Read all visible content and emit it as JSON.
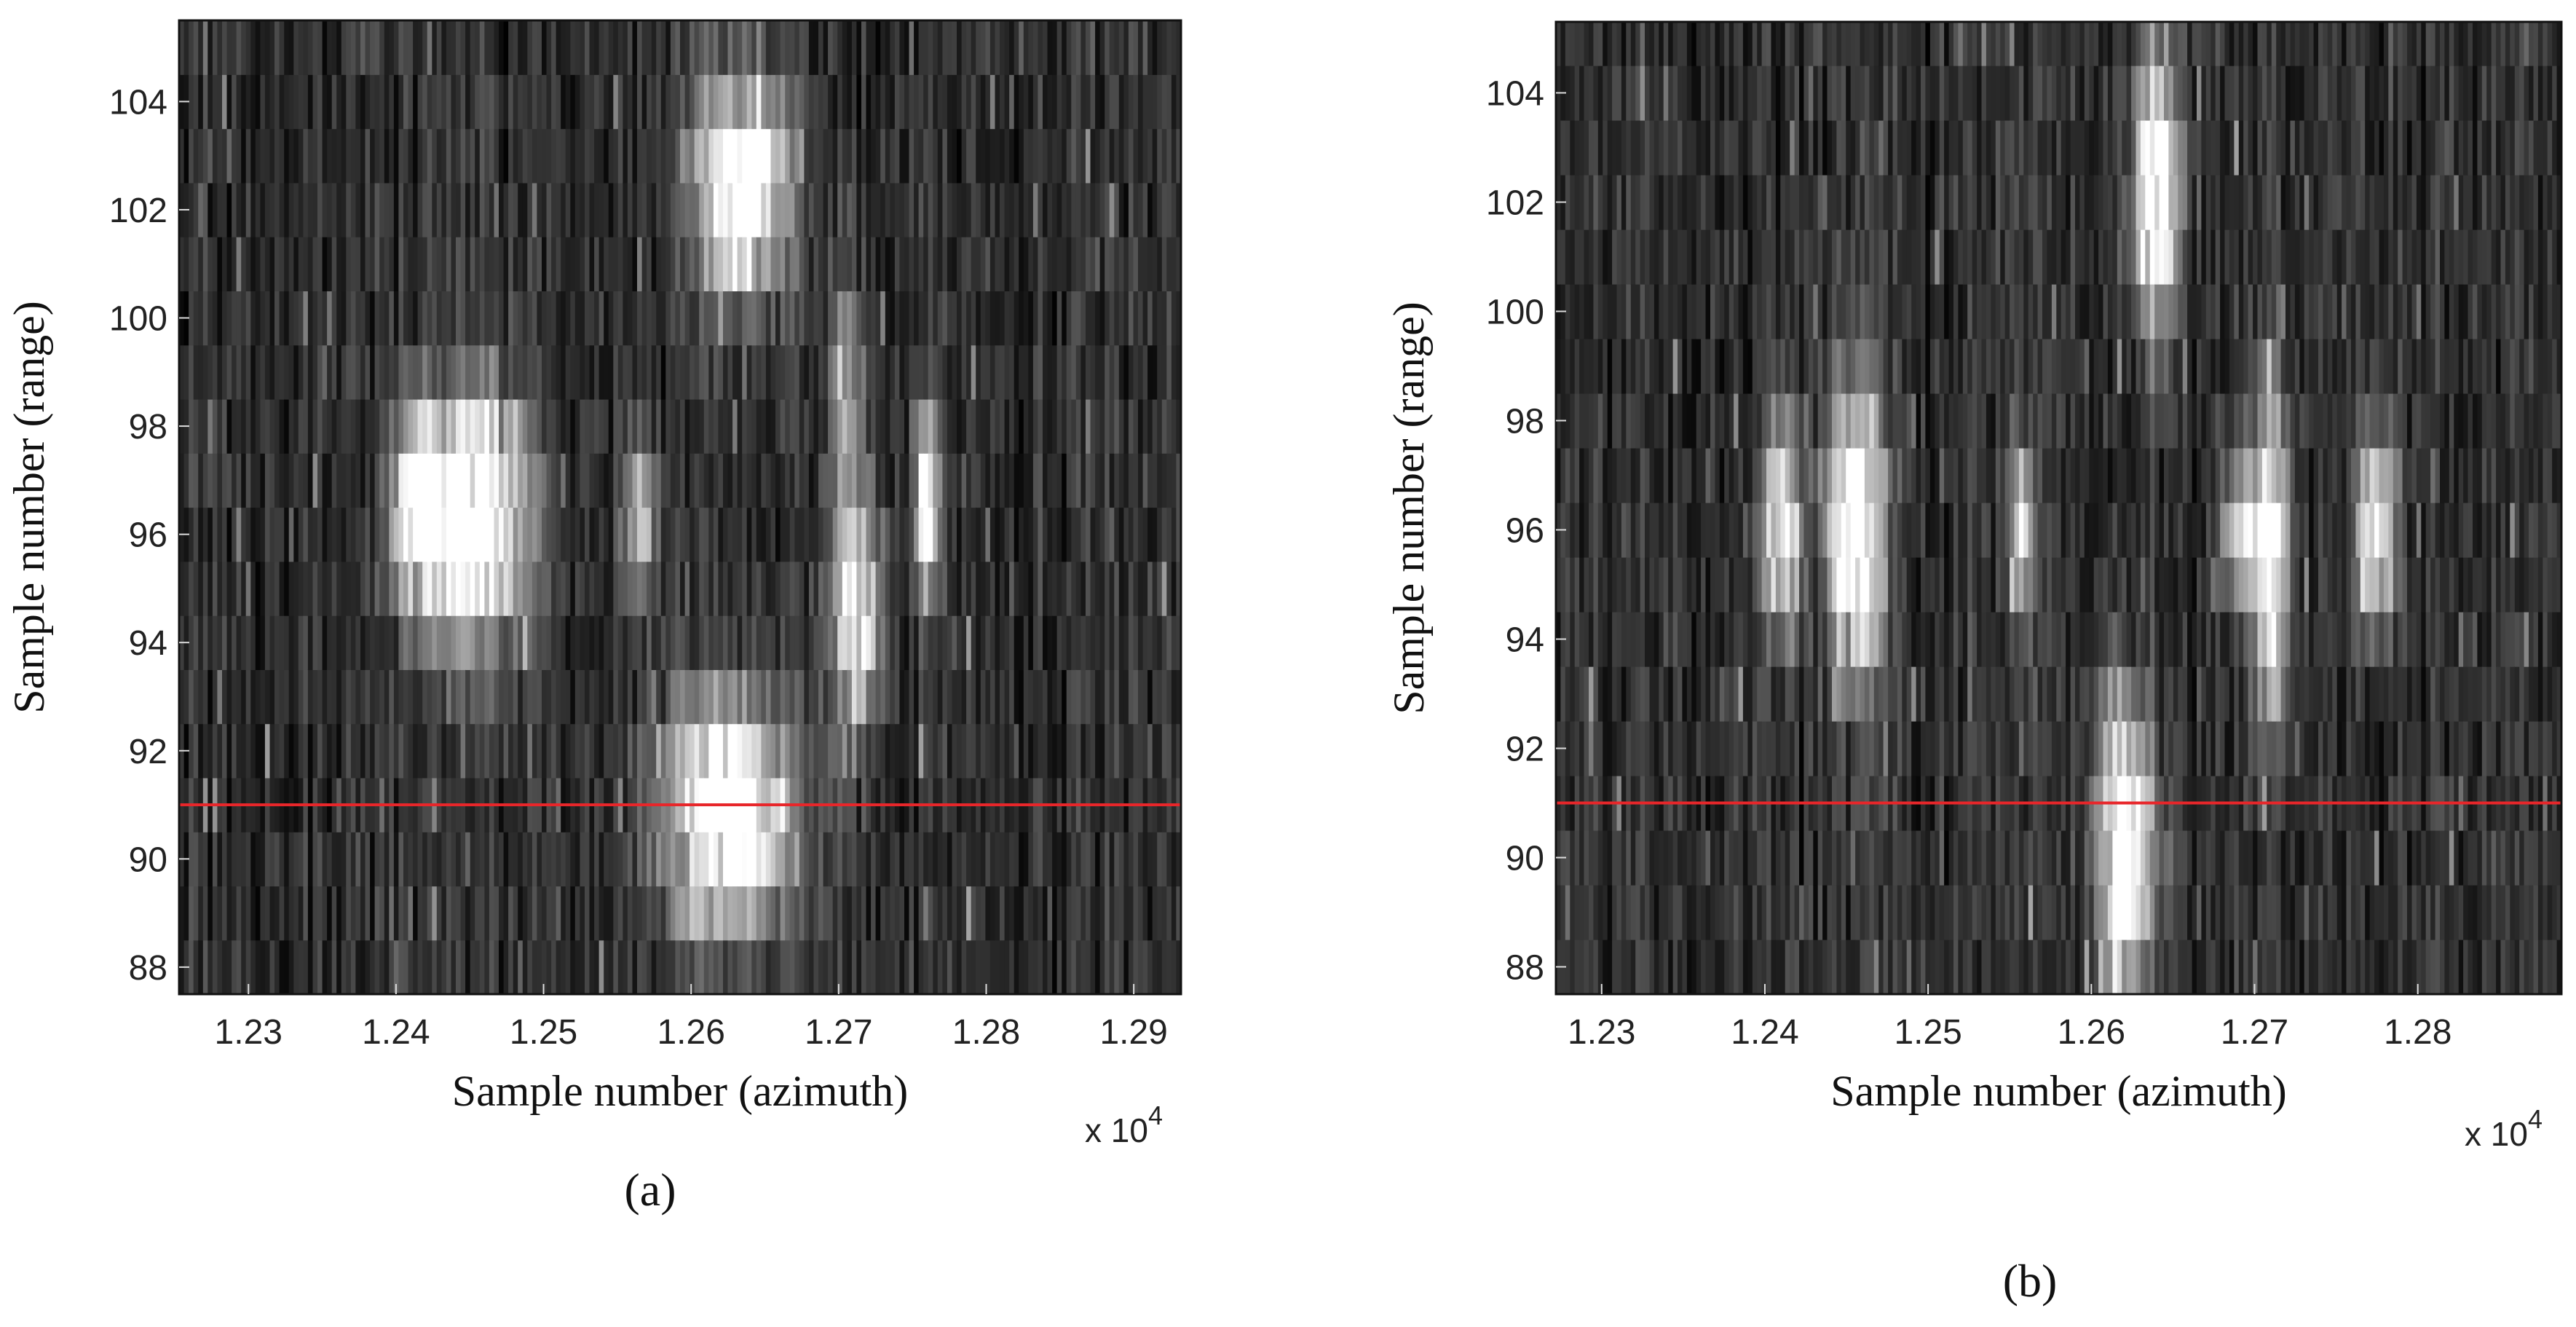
{
  "chart_data": [
    {
      "panel_label": "(a)",
      "type": "heatmap",
      "colormap": "gray",
      "xlabel": "Sample number (azimuth)",
      "ylabel": "Sample number (range)",
      "x_multiplier": {
        "base": "x 10",
        "exponent": "4"
      },
      "xlim": [
        1.2253,
        1.2932
      ],
      "ylim": [
        87.5,
        105.5
      ],
      "x_ticks": [
        1.23,
        1.24,
        1.25,
        1.26,
        1.27,
        1.28,
        1.29
      ],
      "y_ticks": [
        88,
        90,
        92,
        94,
        96,
        98,
        100,
        102,
        104
      ],
      "marker_line": {
        "color": "#e8262a",
        "y": 91
      },
      "bright_regions": [
        {
          "x": 1.2635,
          "y": 102.5,
          "sx": 0.0022,
          "sy": 1.4,
          "intensity": 1.0
        },
        {
          "x": 1.2455,
          "y": 96.3,
          "sx": 0.0025,
          "sy": 1.6,
          "intensity": 1.0
        },
        {
          "x": 1.2415,
          "y": 96.5,
          "sx": 0.0012,
          "sy": 1.2,
          "intensity": 0.85
        },
        {
          "x": 1.2625,
          "y": 90.8,
          "sx": 0.003,
          "sy": 1.5,
          "intensity": 1.0
        },
        {
          "x": 1.2712,
          "y": 94.6,
          "sx": 0.0012,
          "sy": 1.6,
          "intensity": 0.75
        },
        {
          "x": 1.276,
          "y": 96.5,
          "sx": 0.0006,
          "sy": 1.2,
          "intensity": 0.85
        },
        {
          "x": 1.2565,
          "y": 96.3,
          "sx": 0.0008,
          "sy": 1.0,
          "intensity": 0.55
        },
        {
          "x": 1.2705,
          "y": 98.8,
          "sx": 0.0008,
          "sy": 1.4,
          "intensity": 0.45
        }
      ]
    },
    {
      "panel_label": "(b)",
      "type": "heatmap",
      "colormap": "gray",
      "xlabel": "Sample number (azimuth)",
      "ylabel": "Sample number (range)",
      "x_multiplier": {
        "base": "x 10",
        "exponent": "4"
      },
      "xlim": [
        1.2272,
        1.2888
      ],
      "ylim": [
        87.5,
        105.3
      ],
      "x_ticks": [
        1.23,
        1.24,
        1.25,
        1.26,
        1.27,
        1.28
      ],
      "y_ticks": [
        88,
        90,
        92,
        94,
        96,
        98,
        100,
        102,
        104
      ],
      "marker_line": {
        "color": "#e8262a",
        "y": 91
      },
      "bright_regions": [
        {
          "x": 1.264,
          "y": 102.2,
          "sx": 0.001,
          "sy": 1.7,
          "intensity": 1.0
        },
        {
          "x": 1.2455,
          "y": 96.0,
          "sx": 0.0012,
          "sy": 1.8,
          "intensity": 1.0
        },
        {
          "x": 1.241,
          "y": 96.0,
          "sx": 0.0008,
          "sy": 1.4,
          "intensity": 0.8
        },
        {
          "x": 1.262,
          "y": 90.2,
          "sx": 0.0012,
          "sy": 1.9,
          "intensity": 1.0
        },
        {
          "x": 1.271,
          "y": 95.5,
          "sx": 0.0008,
          "sy": 2.0,
          "intensity": 0.85
        },
        {
          "x": 1.2775,
          "y": 96.0,
          "sx": 0.0008,
          "sy": 1.2,
          "intensity": 0.9
        },
        {
          "x": 1.2558,
          "y": 96.0,
          "sx": 0.0005,
          "sy": 1.0,
          "intensity": 0.75
        },
        {
          "x": 1.269,
          "y": 96.0,
          "sx": 0.0008,
          "sy": 0.9,
          "intensity": 0.55
        }
      ]
    }
  ]
}
